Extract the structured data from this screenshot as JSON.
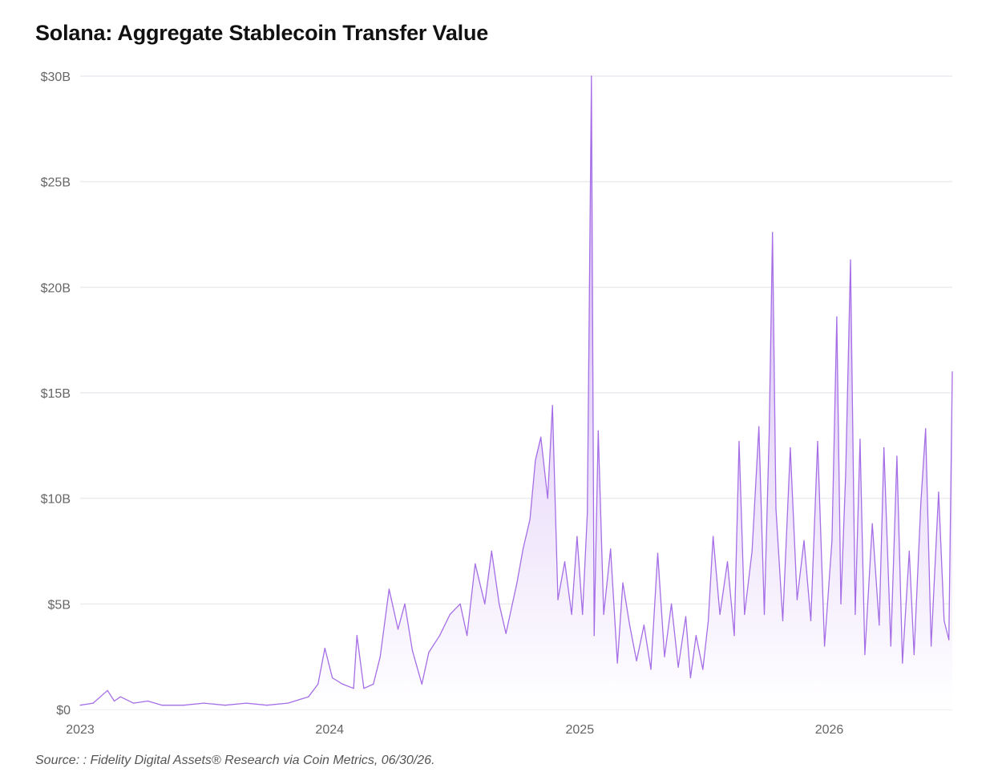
{
  "title": "Solana: Aggregate Stablecoin Transfer Value",
  "source": "Source: : Fidelity Digital Assets® Research via Coin Metrics, 06/30/26.",
  "colors": {
    "line": "#a56ee6",
    "fill_top": "#c7a3f2",
    "fill_bottom": "#ffffff",
    "grid": "#ececf0"
  },
  "chart_data": {
    "type": "area",
    "title": "Solana: Aggregate Stablecoin Transfer Value",
    "xlabel": "",
    "ylabel": "",
    "ylim": [
      0,
      30
    ],
    "xlim": [
      "2023-01-01",
      "2026-06-30"
    ],
    "grid": true,
    "yticks": [
      {
        "value": 0,
        "label": "$0"
      },
      {
        "value": 5,
        "label": "$5B"
      },
      {
        "value": 10,
        "label": "$10B"
      },
      {
        "value": 15,
        "label": "$15B"
      },
      {
        "value": 20,
        "label": "$20B"
      },
      {
        "value": 25,
        "label": "$25B"
      },
      {
        "value": 30,
        "label": "$30B"
      }
    ],
    "xticks": [
      {
        "date": "2023-01-01",
        "label": "2023"
      },
      {
        "date": "2024-01-01",
        "label": "2024"
      },
      {
        "date": "2025-01-01",
        "label": "2025"
      },
      {
        "date": "2026-01-01",
        "label": "2026"
      }
    ],
    "series": [
      {
        "values_unit": "billions USD",
        "points": [
          [
            "2023-01-01",
            0.2
          ],
          [
            "2023-01-20",
            0.3
          ],
          [
            "2023-02-10",
            0.9
          ],
          [
            "2023-02-20",
            0.4
          ],
          [
            "2023-03-01",
            0.6
          ],
          [
            "2023-03-20",
            0.3
          ],
          [
            "2023-04-10",
            0.4
          ],
          [
            "2023-05-01",
            0.2
          ],
          [
            "2023-06-01",
            0.2
          ],
          [
            "2023-07-01",
            0.3
          ],
          [
            "2023-08-01",
            0.2
          ],
          [
            "2023-09-01",
            0.3
          ],
          [
            "2023-10-01",
            0.2
          ],
          [
            "2023-11-01",
            0.3
          ],
          [
            "2023-12-01",
            0.6
          ],
          [
            "2023-12-15",
            1.2
          ],
          [
            "2023-12-25",
            2.9
          ],
          [
            "2024-01-05",
            1.5
          ],
          [
            "2024-01-20",
            1.2
          ],
          [
            "2024-02-05",
            1.0
          ],
          [
            "2024-02-10",
            3.5
          ],
          [
            "2024-02-20",
            1.0
          ],
          [
            "2024-03-05",
            1.2
          ],
          [
            "2024-03-15",
            2.5
          ],
          [
            "2024-03-28",
            5.7
          ],
          [
            "2024-04-10",
            3.8
          ],
          [
            "2024-04-20",
            5.0
          ],
          [
            "2024-05-01",
            2.8
          ],
          [
            "2024-05-15",
            1.2
          ],
          [
            "2024-05-25",
            2.7
          ],
          [
            "2024-06-10",
            3.5
          ],
          [
            "2024-06-25",
            4.5
          ],
          [
            "2024-07-10",
            5.0
          ],
          [
            "2024-07-20",
            3.5
          ],
          [
            "2024-08-01",
            6.9
          ],
          [
            "2024-08-15",
            5.0
          ],
          [
            "2024-08-25",
            7.5
          ],
          [
            "2024-09-05",
            5.0
          ],
          [
            "2024-09-15",
            3.6
          ],
          [
            "2024-10-01",
            6.0
          ],
          [
            "2024-10-10",
            7.6
          ],
          [
            "2024-10-20",
            9.0
          ],
          [
            "2024-10-28",
            11.8
          ],
          [
            "2024-11-05",
            12.9
          ],
          [
            "2024-11-15",
            10.0
          ],
          [
            "2024-11-22",
            14.4
          ],
          [
            "2024-11-30",
            5.2
          ],
          [
            "2024-12-10",
            7.0
          ],
          [
            "2024-12-20",
            4.5
          ],
          [
            "2024-12-28",
            8.2
          ],
          [
            "2025-01-05",
            4.5
          ],
          [
            "2025-01-12",
            9.3
          ],
          [
            "2025-01-18",
            30.0
          ],
          [
            "2025-01-22",
            3.5
          ],
          [
            "2025-01-28",
            13.2
          ],
          [
            "2025-02-05",
            4.5
          ],
          [
            "2025-02-15",
            7.6
          ],
          [
            "2025-02-25",
            2.2
          ],
          [
            "2025-03-05",
            6.0
          ],
          [
            "2025-03-15",
            4.0
          ],
          [
            "2025-03-25",
            2.3
          ],
          [
            "2025-04-05",
            4.0
          ],
          [
            "2025-04-15",
            1.9
          ],
          [
            "2025-04-25",
            7.4
          ],
          [
            "2025-05-05",
            2.5
          ],
          [
            "2025-05-15",
            5.0
          ],
          [
            "2025-05-25",
            2.0
          ],
          [
            "2025-06-05",
            4.4
          ],
          [
            "2025-06-12",
            1.5
          ],
          [
            "2025-06-20",
            3.5
          ],
          [
            "2025-06-30",
            1.9
          ],
          [
            "2025-07-08",
            4.2
          ],
          [
            "2025-07-15",
            8.2
          ],
          [
            "2025-07-25",
            4.5
          ],
          [
            "2025-08-05",
            7.0
          ],
          [
            "2025-08-15",
            3.5
          ],
          [
            "2025-08-22",
            12.7
          ],
          [
            "2025-08-30",
            4.5
          ],
          [
            "2025-09-10",
            7.5
          ],
          [
            "2025-09-20",
            13.4
          ],
          [
            "2025-09-28",
            4.5
          ],
          [
            "2025-10-05",
            13.0
          ],
          [
            "2025-10-10",
            22.6
          ],
          [
            "2025-10-15",
            9.5
          ],
          [
            "2025-10-25",
            4.2
          ],
          [
            "2025-11-05",
            12.4
          ],
          [
            "2025-11-15",
            5.2
          ],
          [
            "2025-11-25",
            8.0
          ],
          [
            "2025-12-05",
            4.2
          ],
          [
            "2025-12-15",
            12.7
          ],
          [
            "2025-12-25",
            3.0
          ],
          [
            "2026-01-05",
            8.0
          ],
          [
            "2026-01-12",
            18.6
          ],
          [
            "2026-01-18",
            5.0
          ],
          [
            "2026-01-25",
            11.2
          ],
          [
            "2026-02-01",
            21.3
          ],
          [
            "2026-02-08",
            4.5
          ],
          [
            "2026-02-15",
            12.8
          ],
          [
            "2026-02-22",
            2.6
          ],
          [
            "2026-03-05",
            8.8
          ],
          [
            "2026-03-15",
            4.0
          ],
          [
            "2026-03-22",
            12.4
          ],
          [
            "2026-04-01",
            3.0
          ],
          [
            "2026-04-10",
            12.0
          ],
          [
            "2026-04-18",
            2.2
          ],
          [
            "2026-04-28",
            7.5
          ],
          [
            "2026-05-05",
            2.6
          ],
          [
            "2026-05-15",
            9.8
          ],
          [
            "2026-05-22",
            13.3
          ],
          [
            "2026-05-30",
            3.0
          ],
          [
            "2026-06-10",
            10.3
          ],
          [
            "2026-06-18",
            4.2
          ],
          [
            "2026-06-25",
            3.3
          ],
          [
            "2026-06-30",
            16.0
          ]
        ]
      }
    ]
  }
}
